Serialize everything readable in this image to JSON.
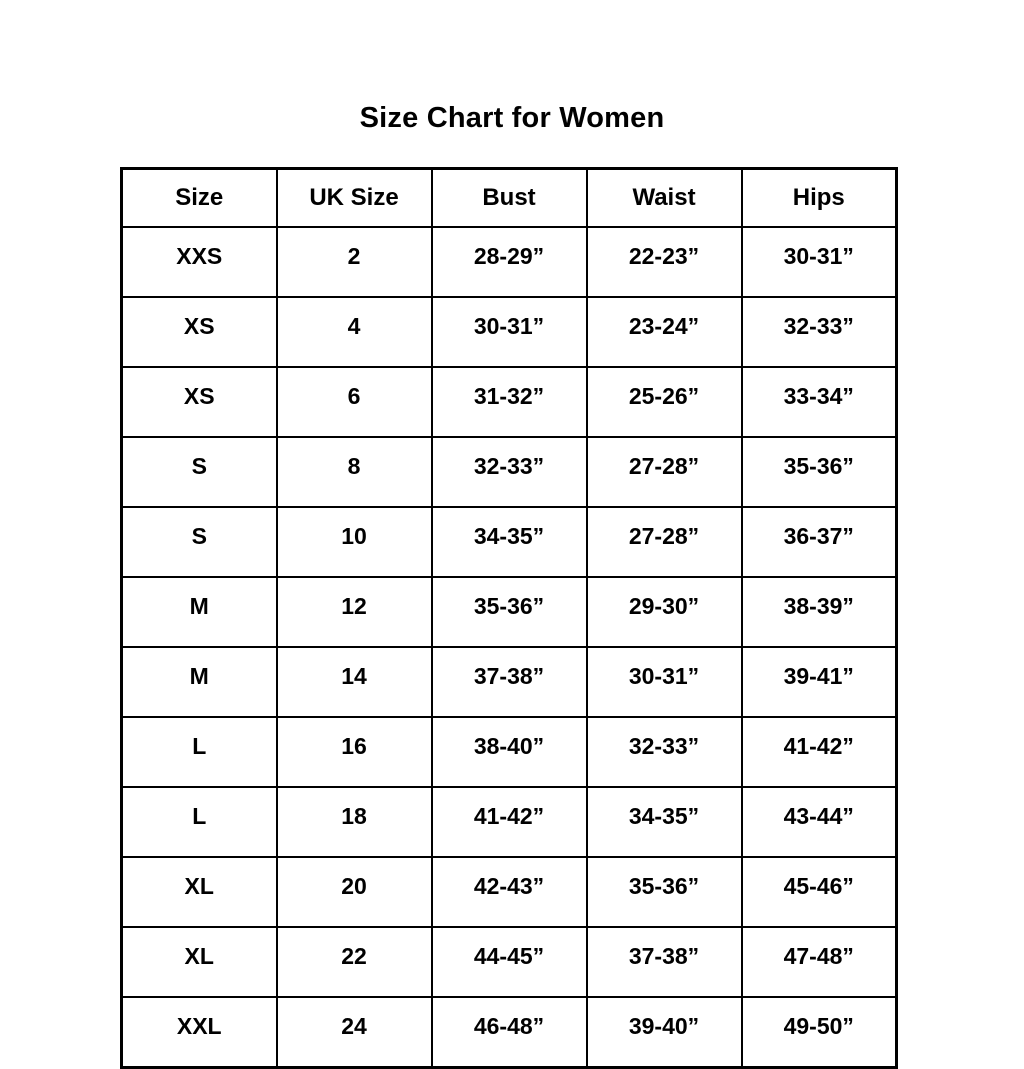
{
  "title": "Size Chart for Women",
  "chart_data": {
    "type": "table",
    "title": "Size Chart for Women",
    "columns": [
      "Size",
      "UK Size",
      "Bust",
      "Waist",
      "Hips"
    ],
    "rows": [
      [
        "XXS",
        "2",
        "28-29”",
        "22-23”",
        "30-31”"
      ],
      [
        "XS",
        "4",
        "30-31”",
        "23-24”",
        "32-33”"
      ],
      [
        "XS",
        "6",
        "31-32”",
        "25-26”",
        "33-34”"
      ],
      [
        "S",
        "8",
        "32-33”",
        "27-28”",
        "35-36”"
      ],
      [
        "S",
        "10",
        "34-35”",
        "27-28”",
        "36-37”"
      ],
      [
        "M",
        "12",
        "35-36”",
        "29-30”",
        "38-39”"
      ],
      [
        "M",
        "14",
        "37-38”",
        "30-31”",
        "39-41”"
      ],
      [
        "L",
        "16",
        "38-40”",
        "32-33”",
        "41-42”"
      ],
      [
        "L",
        "18",
        "41-42”",
        "34-35”",
        "43-44”"
      ],
      [
        "XL",
        "20",
        "42-43”",
        "35-36”",
        "45-46”"
      ],
      [
        "XL",
        "22",
        "44-45”",
        "37-38”",
        "47-48”"
      ],
      [
        "XXL",
        "24",
        "46-48”",
        "39-40”",
        "49-50”"
      ]
    ],
    "layout": {
      "grid": true,
      "border_color": "#000000",
      "background_color": "#ffffff",
      "text_color": "#000000"
    }
  }
}
